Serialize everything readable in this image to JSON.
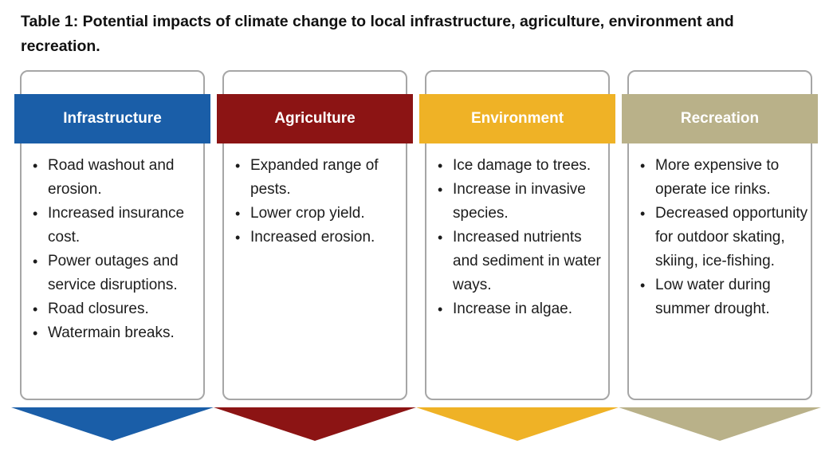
{
  "title": "Table 1: Potential impacts of climate change to local infrastructure, agriculture, environment and recreation.",
  "colors": {
    "card_border": "#a6a6a6",
    "body_text": "#1c1c1c",
    "header_text": "#ffffff",
    "background": "#ffffff"
  },
  "columns": [
    {
      "header": "Infrastructure",
      "color": "#1a5ea8",
      "items": [
        "Road washout and erosion.",
        "Increased insurance cost.",
        "Power outages and service disruptions.",
        "Road closures.",
        "Watermain breaks."
      ]
    },
    {
      "header": "Agriculture",
      "color": "#8c1414",
      "items": [
        "Expanded range of pests.",
        "Lower crop yield.",
        "Increased erosion."
      ]
    },
    {
      "header": "Environment",
      "color": "#efb226",
      "items": [
        "Ice damage to trees.",
        "Increase in invasive species.",
        "Increased nutrients and sediment in water ways.",
        "Increase in algae."
      ]
    },
    {
      "header": "Recreation",
      "color": "#b9b189",
      "items": [
        "More expensive to operate ice rinks.",
        "Decreased opportunity for outdoor skating, skiing, ice-fishing.",
        "Low water during summer drought."
      ]
    }
  ]
}
